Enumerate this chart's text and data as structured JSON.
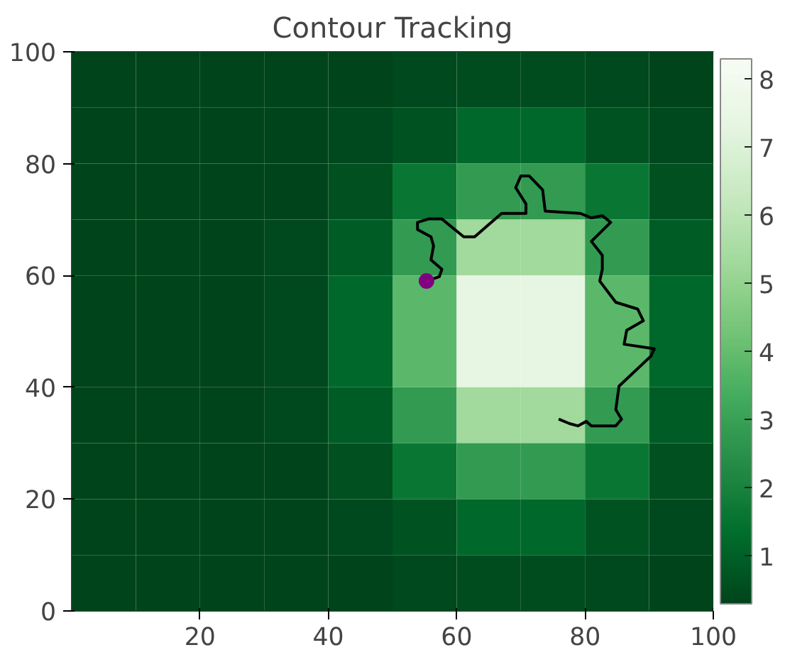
{
  "chart_data": {
    "type": "heatmap",
    "title": "Contour Tracking",
    "xlim": [
      0,
      100
    ],
    "ylim": [
      0,
      100
    ],
    "xticks": [
      20,
      40,
      60,
      80,
      100
    ],
    "yticks": [
      0,
      20,
      40,
      60,
      80,
      100
    ],
    "cells": [
      [
        0.3,
        0.3,
        0.3,
        0.3,
        0.3,
        0.4,
        0.5,
        0.5,
        0.4,
        0.3
      ],
      [
        0.3,
        0.3,
        0.3,
        0.3,
        0.4,
        0.7,
        1.2,
        1.2,
        0.7,
        0.4
      ],
      [
        0.3,
        0.3,
        0.3,
        0.3,
        0.6,
        1.6,
        2.8,
        2.8,
        1.6,
        0.6
      ],
      [
        0.3,
        0.3,
        0.3,
        0.4,
        0.9,
        2.8,
        5.3,
        5.3,
        2.8,
        0.9
      ],
      [
        0.3,
        0.3,
        0.3,
        0.4,
        1.2,
        3.8,
        7.4,
        7.4,
        3.8,
        1.2
      ],
      [
        0.3,
        0.3,
        0.3,
        0.4,
        1.2,
        3.8,
        7.4,
        7.4,
        3.8,
        1.2
      ],
      [
        0.3,
        0.3,
        0.3,
        0.4,
        0.9,
        2.8,
        5.3,
        5.3,
        2.8,
        0.9
      ],
      [
        0.3,
        0.3,
        0.3,
        0.3,
        0.6,
        1.6,
        2.8,
        2.8,
        1.6,
        0.6
      ],
      [
        0.3,
        0.3,
        0.3,
        0.3,
        0.4,
        0.7,
        1.2,
        1.2,
        0.7,
        0.4
      ],
      [
        0.3,
        0.3,
        0.3,
        0.3,
        0.3,
        0.4,
        0.5,
        0.5,
        0.4,
        0.3
      ]
    ],
    "clim": [
      0.3,
      8.3
    ],
    "cticks": [
      1,
      2,
      3,
      4,
      5,
      6,
      7,
      8
    ],
    "series": [
      {
        "type": "line",
        "color": "#000000",
        "x": [
          55.3,
          57.3,
          57.7,
          56.0,
          56.4,
          56.0,
          53.9,
          53.9,
          55.6,
          57.7,
          61.1,
          62.8,
          67.0,
          70.8,
          70.8,
          69.2,
          70.0,
          71.3,
          73.4,
          73.8,
          79.3,
          81.0,
          82.7,
          84.0,
          81.0,
          82.7,
          82.7,
          82.3,
          84.8,
          88.2,
          89.1,
          86.5,
          86.1,
          90.8,
          90.3,
          85.3,
          84.8,
          85.7,
          84.8,
          81.0,
          80.2,
          78.9,
          77.6,
          75.9
        ],
        "values": [
          59.0,
          59.8,
          61.1,
          62.8,
          65.3,
          66.9,
          68.2,
          69.5,
          70.1,
          70.1,
          66.9,
          66.9,
          71.1,
          71.1,
          72.8,
          75.7,
          77.8,
          77.8,
          75.3,
          71.5,
          71.1,
          70.3,
          70.7,
          69.5,
          66.1,
          63.6,
          61.1,
          59.0,
          55.2,
          54.0,
          51.9,
          50.2,
          47.7,
          46.9,
          45.6,
          40.2,
          36.0,
          34.3,
          33.1,
          33.1,
          33.9,
          33.1,
          33.5,
          34.3
        ]
      },
      {
        "type": "scatter",
        "color": "#800080",
        "marker": "circle",
        "x": [
          55.3
        ],
        "values": [
          59.0
        ]
      }
    ]
  }
}
